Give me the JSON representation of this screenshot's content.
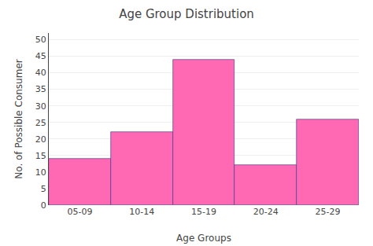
{
  "chart_data": {
    "type": "bar",
    "title": "Age Group Distribution",
    "xlabel": "Age Groups",
    "ylabel": "No. of Possible Consumer",
    "categories": [
      "05-09",
      "10-14",
      "15-19",
      "20-24",
      "25-29"
    ],
    "values": [
      14,
      22,
      44,
      12,
      26
    ],
    "color": "#FF69B4",
    "ylim": [
      0,
      52
    ],
    "yticks": [
      0,
      5,
      10,
      15,
      20,
      25,
      30,
      35,
      40,
      45,
      50
    ],
    "grid": true
  }
}
